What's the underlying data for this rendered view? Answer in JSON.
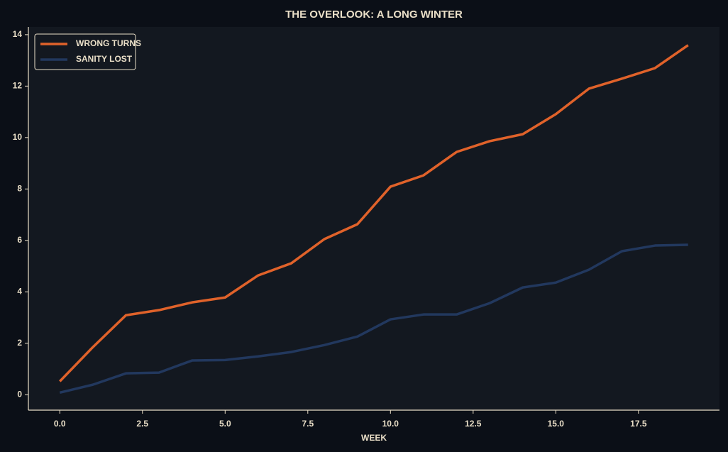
{
  "chart_data": {
    "type": "line",
    "title": "THE OVERLOOK: A LONG WINTER",
    "x_label": "WEEK",
    "x": [
      0,
      1,
      2,
      3,
      4,
      5,
      6,
      7,
      8,
      9,
      10,
      11,
      12,
      13,
      14,
      15,
      16,
      17,
      18,
      19
    ],
    "series": [
      {
        "name": "WRONG TURNS",
        "color": "#e0622a",
        "values": [
          0.52,
          1.85,
          3.09,
          3.29,
          3.59,
          3.78,
          4.64,
          5.11,
          6.05,
          6.63,
          8.09,
          8.53,
          9.44,
          9.86,
          10.13,
          10.91,
          11.9,
          12.29,
          12.7,
          13.59
        ]
      },
      {
        "name": "SANITY LOST",
        "color": "#22385e",
        "values": [
          0.08,
          0.39,
          0.83,
          0.86,
          1.33,
          1.35,
          1.49,
          1.66,
          1.93,
          2.26,
          2.93,
          3.12,
          3.12,
          3.56,
          4.17,
          4.36,
          4.86,
          5.58,
          5.8,
          5.83
        ]
      }
    ],
    "xlim": [
      -0.95,
      19.95
    ],
    "ylim": [
      -0.6,
      14.3
    ],
    "xticks": [
      {
        "value": 0,
        "label": "0.0"
      },
      {
        "value": 2.5,
        "label": "2.5"
      },
      {
        "value": 5,
        "label": "5.0"
      },
      {
        "value": 7.5,
        "label": "7.5"
      },
      {
        "value": 10,
        "label": "10.0"
      },
      {
        "value": 12.5,
        "label": "12.5"
      },
      {
        "value": 15,
        "label": "15.0"
      },
      {
        "value": 17.5,
        "label": "17.5"
      }
    ],
    "yticks": [
      0,
      2,
      4,
      6,
      8,
      10,
      12,
      14
    ],
    "grid": false,
    "legend": "upper left"
  }
}
